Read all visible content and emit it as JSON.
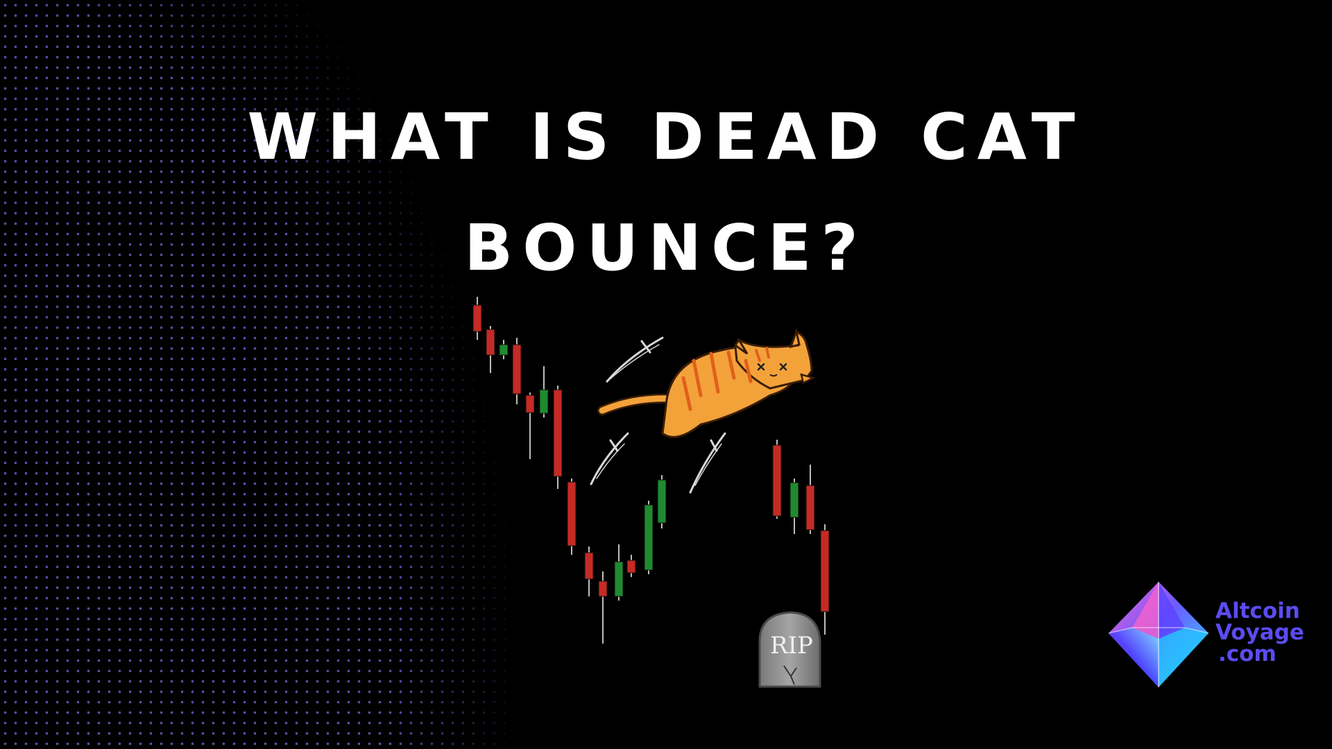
{
  "title": {
    "line1": "WHAT IS DEAD CAT",
    "line2": "BOUNCE?"
  },
  "illustration": {
    "tombstone_text": "RIP",
    "candle_colors": {
      "up": "#1f8a2f",
      "down": "#c62a24"
    },
    "cat_color": "#f3a23a"
  },
  "brand": {
    "line1": "Altcoin",
    "line2": "Voyage",
    "line3": ".com",
    "color": "#5b4cf0"
  }
}
